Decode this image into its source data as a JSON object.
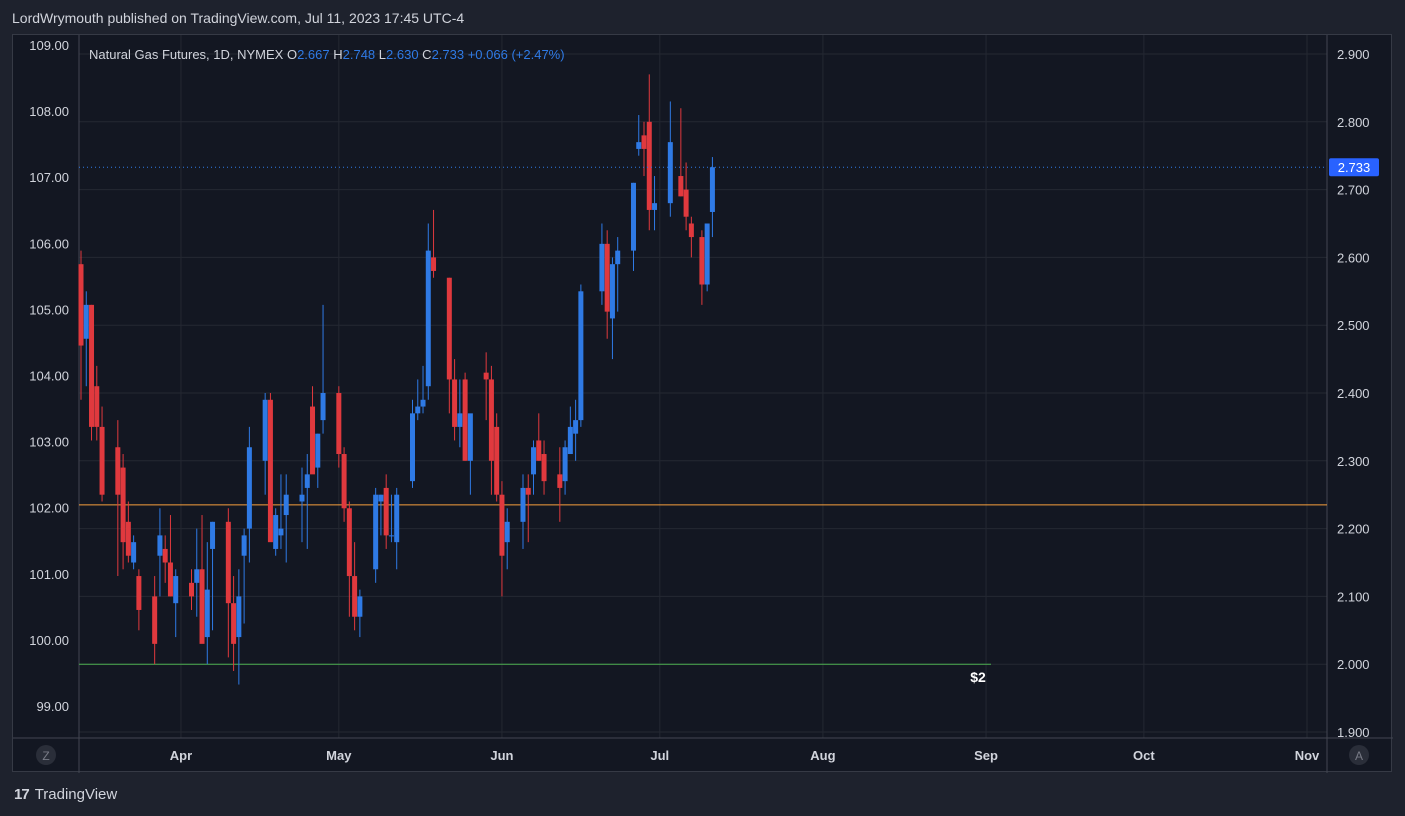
{
  "publish_line": "LordWrymouth published on TradingView.com, Jul 11, 2023 17:45 UTC-4",
  "brand": {
    "logo_text": "17",
    "name": "TradingView"
  },
  "colors": {
    "up": "#2f7ae5",
    "down": "#e0393e",
    "background": "#131722",
    "grid": "#242832",
    "text": "#d1d4dc",
    "orange_line": "#f7a03c",
    "green_line": "#4caf50",
    "price_tag": "#2962ff"
  },
  "chart_data": {
    "type": "candlestick",
    "title": "Natural Gas Futures, 1D, NYMEX",
    "ohlc_header": {
      "o_label": "O",
      "o": "2.667",
      "h_label": "H",
      "h": "2.748",
      "l_label": "L",
      "l": "2.630",
      "c_label": "C",
      "c": "2.733",
      "change": "+0.066 (+2.47%)"
    },
    "last_price_tag": "2.733",
    "last_price": 2.733,
    "right_axis": {
      "min": 1.9,
      "max": 2.9,
      "ticks": [
        "2.900",
        "2.800",
        "2.700",
        "2.600",
        "2.500",
        "2.400",
        "2.300",
        "2.200",
        "2.100",
        "2.000",
        "1.900"
      ]
    },
    "left_axis": {
      "min": 98.75,
      "max": 109.0,
      "ticks": [
        "109.00",
        "108.00",
        "107.00",
        "106.00",
        "105.00",
        "104.00",
        "103.00",
        "102.00",
        "101.00",
        "100.00",
        "99.00"
      ]
    },
    "x_axis": {
      "labels": [
        "Apr",
        "May",
        "Jun",
        "Jul",
        "Aug",
        "Sep",
        "Oct",
        "Nov"
      ]
    },
    "axis_buttons": {
      "left": "Z",
      "right": "A"
    },
    "horizontal_lines": [
      {
        "name": "resistance",
        "price": 2.235
      },
      {
        "name": "support",
        "price": 2.0,
        "label": "$2"
      }
    ],
    "candles": [
      {
        "date": "2023-03-13",
        "o": 2.59,
        "h": 2.61,
        "l": 2.39,
        "c": 2.47
      },
      {
        "date": "2023-03-14",
        "o": 2.48,
        "h": 2.55,
        "l": 2.41,
        "c": 2.53
      },
      {
        "date": "2023-03-15",
        "o": 2.53,
        "h": 2.53,
        "l": 2.33,
        "c": 2.35
      },
      {
        "date": "2023-03-16",
        "o": 2.41,
        "h": 2.44,
        "l": 2.33,
        "c": 2.35
      },
      {
        "date": "2023-03-17",
        "o": 2.35,
        "h": 2.38,
        "l": 2.24,
        "c": 2.25
      },
      {
        "date": "2023-03-20",
        "o": 2.32,
        "h": 2.36,
        "l": 2.13,
        "c": 2.25
      },
      {
        "date": "2023-03-21",
        "o": 2.29,
        "h": 2.31,
        "l": 2.14,
        "c": 2.18
      },
      {
        "date": "2023-03-22",
        "o": 2.21,
        "h": 2.24,
        "l": 2.15,
        "c": 2.16
      },
      {
        "date": "2023-03-23",
        "o": 2.15,
        "h": 2.19,
        "l": 2.14,
        "c": 2.18
      },
      {
        "date": "2023-03-24",
        "o": 2.13,
        "h": 2.14,
        "l": 2.05,
        "c": 2.08
      },
      {
        "date": "2023-03-27",
        "o": 2.1,
        "h": 2.13,
        "l": 2.0,
        "c": 2.03
      },
      {
        "date": "2023-03-28",
        "o": 2.16,
        "h": 2.23,
        "l": 2.1,
        "c": 2.19
      },
      {
        "date": "2023-03-29",
        "o": 2.17,
        "h": 2.19,
        "l": 2.12,
        "c": 2.15
      },
      {
        "date": "2023-03-30",
        "o": 2.15,
        "h": 2.22,
        "l": 2.1,
        "c": 2.1
      },
      {
        "date": "2023-03-31",
        "o": 2.09,
        "h": 2.14,
        "l": 2.04,
        "c": 2.13
      },
      {
        "date": "2023-04-03",
        "o": 2.12,
        "h": 2.14,
        "l": 2.08,
        "c": 2.1
      },
      {
        "date": "2023-04-04",
        "o": 2.12,
        "h": 2.2,
        "l": 2.07,
        "c": 2.14
      },
      {
        "date": "2023-04-05",
        "o": 2.14,
        "h": 2.22,
        "l": 2.04,
        "c": 2.03
      },
      {
        "date": "2023-04-06",
        "o": 2.04,
        "h": 2.18,
        "l": 2.0,
        "c": 2.11
      },
      {
        "date": "2023-04-07",
        "o": 2.17,
        "h": 2.21,
        "l": 2.05,
        "c": 2.21
      },
      {
        "date": "2023-04-10",
        "o": 2.21,
        "h": 2.23,
        "l": 2.01,
        "c": 2.09
      },
      {
        "date": "2023-04-11",
        "o": 2.09,
        "h": 2.13,
        "l": 1.99,
        "c": 2.03
      },
      {
        "date": "2023-04-12",
        "o": 2.04,
        "h": 2.14,
        "l": 1.97,
        "c": 2.1
      },
      {
        "date": "2023-04-13",
        "o": 2.16,
        "h": 2.2,
        "l": 2.06,
        "c": 2.19
      },
      {
        "date": "2023-04-14",
        "o": 2.2,
        "h": 2.35,
        "l": 2.15,
        "c": 2.32
      },
      {
        "date": "2023-04-17",
        "o": 2.3,
        "h": 2.4,
        "l": 2.25,
        "c": 2.39
      },
      {
        "date": "2023-04-18",
        "o": 2.39,
        "h": 2.4,
        "l": 2.22,
        "c": 2.18
      },
      {
        "date": "2023-04-19",
        "o": 2.17,
        "h": 2.23,
        "l": 2.16,
        "c": 2.22
      },
      {
        "date": "2023-04-20",
        "o": 2.19,
        "h": 2.28,
        "l": 2.17,
        "c": 2.2
      },
      {
        "date": "2023-04-21",
        "o": 2.22,
        "h": 2.28,
        "l": 2.15,
        "c": 2.25
      },
      {
        "date": "2023-04-24",
        "o": 2.24,
        "h": 2.29,
        "l": 2.18,
        "c": 2.25
      },
      {
        "date": "2023-04-25",
        "o": 2.26,
        "h": 2.31,
        "l": 2.17,
        "c": 2.28
      },
      {
        "date": "2023-04-26",
        "o": 2.38,
        "h": 2.41,
        "l": 2.31,
        "c": 2.28
      },
      {
        "date": "2023-04-27",
        "o": 2.29,
        "h": 2.34,
        "l": 2.26,
        "c": 2.34
      },
      {
        "date": "2023-04-28",
        "o": 2.36,
        "h": 2.53,
        "l": 2.34,
        "c": 2.4
      },
      {
        "date": "2023-05-01",
        "o": 2.4,
        "h": 2.41,
        "l": 2.29,
        "c": 2.31
      },
      {
        "date": "2023-05-02",
        "o": 2.31,
        "h": 2.32,
        "l": 2.21,
        "c": 2.23
      },
      {
        "date": "2023-05-03",
        "o": 2.23,
        "h": 2.24,
        "l": 2.07,
        "c": 2.13
      },
      {
        "date": "2023-05-04",
        "o": 2.13,
        "h": 2.18,
        "l": 2.05,
        "c": 2.07
      },
      {
        "date": "2023-05-05",
        "o": 2.07,
        "h": 2.11,
        "l": 2.04,
        "c": 2.1
      },
      {
        "date": "2023-05-08",
        "o": 2.14,
        "h": 2.26,
        "l": 2.12,
        "c": 2.25
      },
      {
        "date": "2023-05-09",
        "o": 2.24,
        "h": 2.25,
        "l": 2.19,
        "c": 2.25
      },
      {
        "date": "2023-05-10",
        "o": 2.26,
        "h": 2.28,
        "l": 2.17,
        "c": 2.19
      },
      {
        "date": "2023-05-11",
        "o": 2.19,
        "h": 2.25,
        "l": 2.18,
        "c": 2.19
      },
      {
        "date": "2023-05-12",
        "o": 2.18,
        "h": 2.26,
        "l": 2.14,
        "c": 2.25
      },
      {
        "date": "2023-05-15",
        "o": 2.27,
        "h": 2.39,
        "l": 2.26,
        "c": 2.37
      },
      {
        "date": "2023-05-16",
        "o": 2.37,
        "h": 2.42,
        "l": 2.36,
        "c": 2.38
      },
      {
        "date": "2023-05-17",
        "o": 2.38,
        "h": 2.44,
        "l": 2.37,
        "c": 2.39
      },
      {
        "date": "2023-05-18",
        "o": 2.41,
        "h": 2.65,
        "l": 2.39,
        "c": 2.61
      },
      {
        "date": "2023-05-19",
        "o": 2.6,
        "h": 2.67,
        "l": 2.57,
        "c": 2.58
      },
      {
        "date": "2023-05-22",
        "o": 2.57,
        "h": 2.57,
        "l": 2.37,
        "c": 2.42
      },
      {
        "date": "2023-05-23",
        "o": 2.42,
        "h": 2.45,
        "l": 2.33,
        "c": 2.35
      },
      {
        "date": "2023-05-24",
        "o": 2.35,
        "h": 2.42,
        "l": 2.32,
        "c": 2.37
      },
      {
        "date": "2023-05-25",
        "o": 2.42,
        "h": 2.43,
        "l": 2.3,
        "c": 2.3
      },
      {
        "date": "2023-05-26",
        "o": 2.3,
        "h": 2.34,
        "l": 2.25,
        "c": 2.37
      },
      {
        "date": "2023-05-29",
        "o": 2.43,
        "h": 2.46,
        "l": 2.36,
        "c": 2.42
      },
      {
        "date": "2023-05-30",
        "o": 2.42,
        "h": 2.44,
        "l": 2.25,
        "c": 2.3
      },
      {
        "date": "2023-05-31",
        "o": 2.35,
        "h": 2.37,
        "l": 2.24,
        "c": 2.25
      },
      {
        "date": "2023-06-01",
        "o": 2.25,
        "h": 2.27,
        "l": 2.1,
        "c": 2.16
      },
      {
        "date": "2023-06-02",
        "o": 2.18,
        "h": 2.23,
        "l": 2.14,
        "c": 2.21
      },
      {
        "date": "2023-06-05",
        "o": 2.21,
        "h": 2.28,
        "l": 2.17,
        "c": 2.26
      },
      {
        "date": "2023-06-06",
        "o": 2.26,
        "h": 2.28,
        "l": 2.18,
        "c": 2.25
      },
      {
        "date": "2023-06-07",
        "o": 2.28,
        "h": 2.33,
        "l": 2.25,
        "c": 2.32
      },
      {
        "date": "2023-06-08",
        "o": 2.33,
        "h": 2.37,
        "l": 2.3,
        "c": 2.3
      },
      {
        "date": "2023-06-09",
        "o": 2.31,
        "h": 2.33,
        "l": 2.25,
        "c": 2.27
      },
      {
        "date": "2023-06-12",
        "o": 2.28,
        "h": 2.32,
        "l": 2.21,
        "c": 2.26
      },
      {
        "date": "2023-06-13",
        "o": 2.27,
        "h": 2.33,
        "l": 2.25,
        "c": 2.32
      },
      {
        "date": "2023-06-14",
        "o": 2.31,
        "h": 2.38,
        "l": 2.31,
        "c": 2.35
      },
      {
        "date": "2023-06-15",
        "o": 2.34,
        "h": 2.39,
        "l": 2.3,
        "c": 2.36
      },
      {
        "date": "2023-06-16",
        "o": 2.36,
        "h": 2.56,
        "l": 2.35,
        "c": 2.55
      },
      {
        "date": "2023-06-20",
        "o": 2.55,
        "h": 2.65,
        "l": 2.53,
        "c": 2.62
      },
      {
        "date": "2023-06-21",
        "o": 2.62,
        "h": 2.64,
        "l": 2.48,
        "c": 2.52
      },
      {
        "date": "2023-06-22",
        "o": 2.51,
        "h": 2.6,
        "l": 2.45,
        "c": 2.59
      },
      {
        "date": "2023-06-23",
        "o": 2.59,
        "h": 2.63,
        "l": 2.52,
        "c": 2.61
      },
      {
        "date": "2023-06-26",
        "o": 2.61,
        "h": 2.71,
        "l": 2.58,
        "c": 2.71
      },
      {
        "date": "2023-06-27",
        "o": 2.76,
        "h": 2.81,
        "l": 2.75,
        "c": 2.77
      },
      {
        "date": "2023-06-28",
        "o": 2.78,
        "h": 2.8,
        "l": 2.72,
        "c": 2.76
      },
      {
        "date": "2023-06-29",
        "o": 2.8,
        "h": 2.87,
        "l": 2.64,
        "c": 2.67
      },
      {
        "date": "2023-06-30",
        "o": 2.67,
        "h": 2.72,
        "l": 2.64,
        "c": 2.68
      },
      {
        "date": "2023-07-03",
        "o": 2.68,
        "h": 2.83,
        "l": 2.66,
        "c": 2.77
      },
      {
        "date": "2023-07-05",
        "o": 2.72,
        "h": 2.82,
        "l": 2.69,
        "c": 2.69
      },
      {
        "date": "2023-07-06",
        "o": 2.7,
        "h": 2.74,
        "l": 2.64,
        "c": 2.66
      },
      {
        "date": "2023-07-07",
        "o": 2.65,
        "h": 2.66,
        "l": 2.6,
        "c": 2.63
      },
      {
        "date": "2023-07-09",
        "o": 2.63,
        "h": 2.64,
        "l": 2.53,
        "c": 2.56
      },
      {
        "date": "2023-07-10",
        "o": 2.56,
        "h": 2.65,
        "l": 2.55,
        "c": 2.65
      },
      {
        "date": "2023-07-11",
        "o": 2.667,
        "h": 2.748,
        "l": 2.63,
        "c": 2.733
      }
    ]
  }
}
